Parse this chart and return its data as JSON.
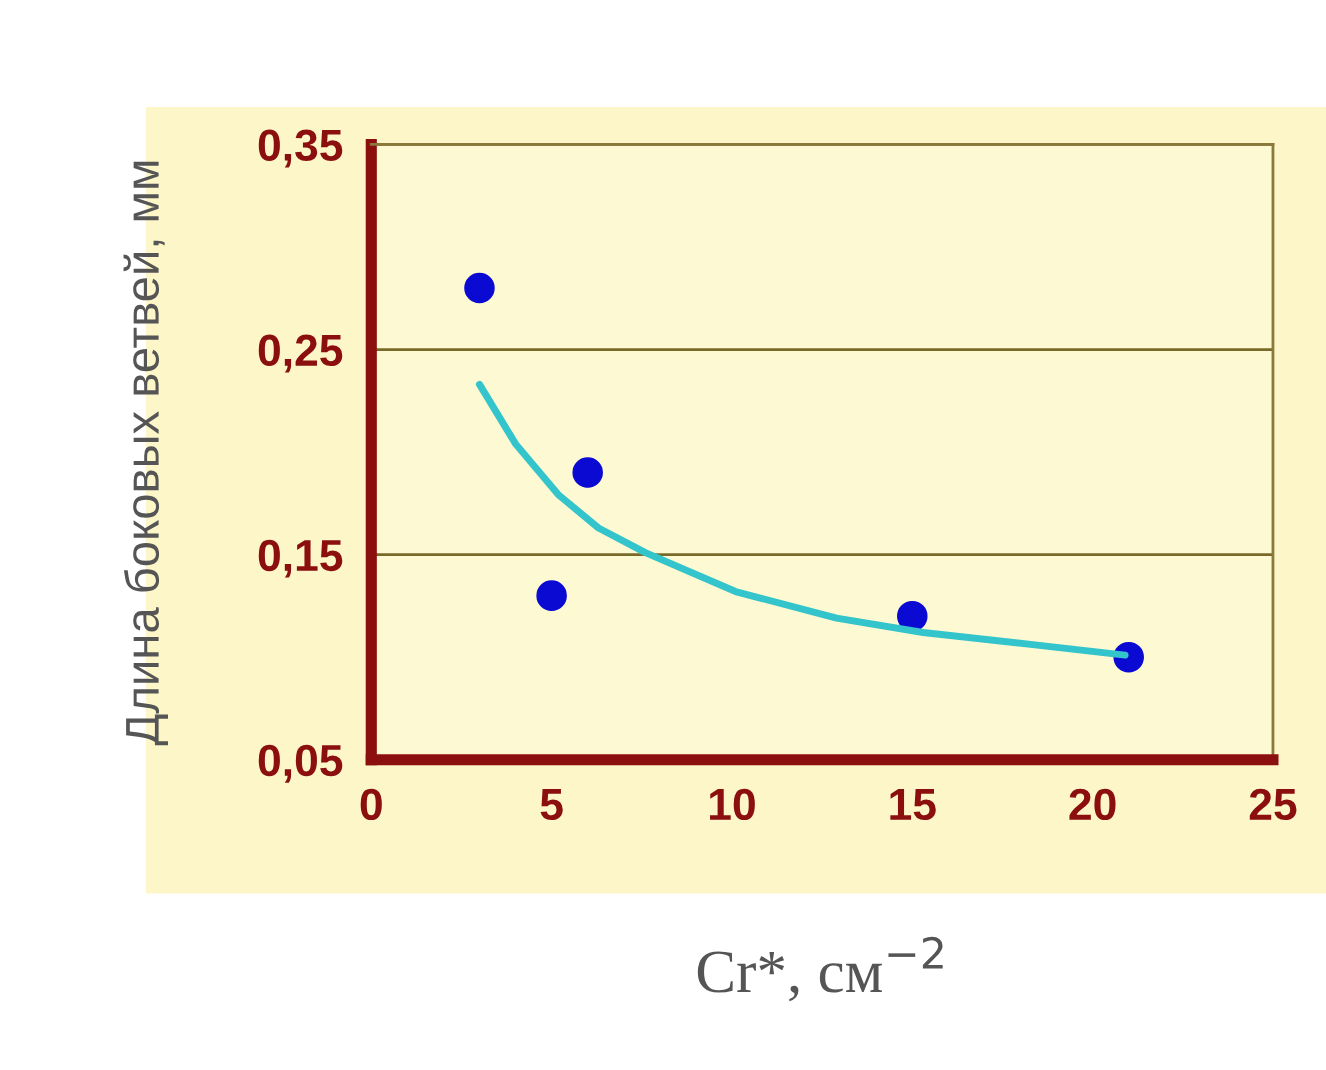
{
  "chart_data": {
    "type": "scatter",
    "xlabel": "Cr*, см$^{−2}$",
    "ylabel": "Длина боковых ветвей, мм",
    "series": [
      {
        "marker": "circle",
        "color": "#0a0ad2",
        "x": [
          3,
          5,
          6,
          15,
          21
        ],
        "values": [
          0.28,
          0.13,
          0.19,
          0.12,
          0.1
        ]
      },
      {
        "type": "line",
        "line_style": "solid",
        "color": "#33c4cc",
        "x": [
          3,
          4,
          5.2,
          6.3,
          7.6,
          10.1,
          12.9,
          15.3,
          18.4,
          20.9
        ],
        "values": [
          0.233,
          0.204,
          0.179,
          0.163,
          0.151,
          0.132,
          0.119,
          0.112,
          0.106,
          0.101
        ]
      }
    ],
    "xlim": [
      0,
      25
    ],
    "xticks": [
      0,
      5,
      10,
      15,
      20,
      25
    ],
    "ylim": [
      0.05,
      0.35
    ],
    "yticks": [
      {
        "value": 0.05,
        "label": "0,05"
      },
      {
        "value": 0.15,
        "label": "0,15"
      },
      {
        "value": 0.25,
        "label": "0,25"
      },
      {
        "value": 0.35,
        "label": "0,35"
      }
    ],
    "grid": "y"
  }
}
